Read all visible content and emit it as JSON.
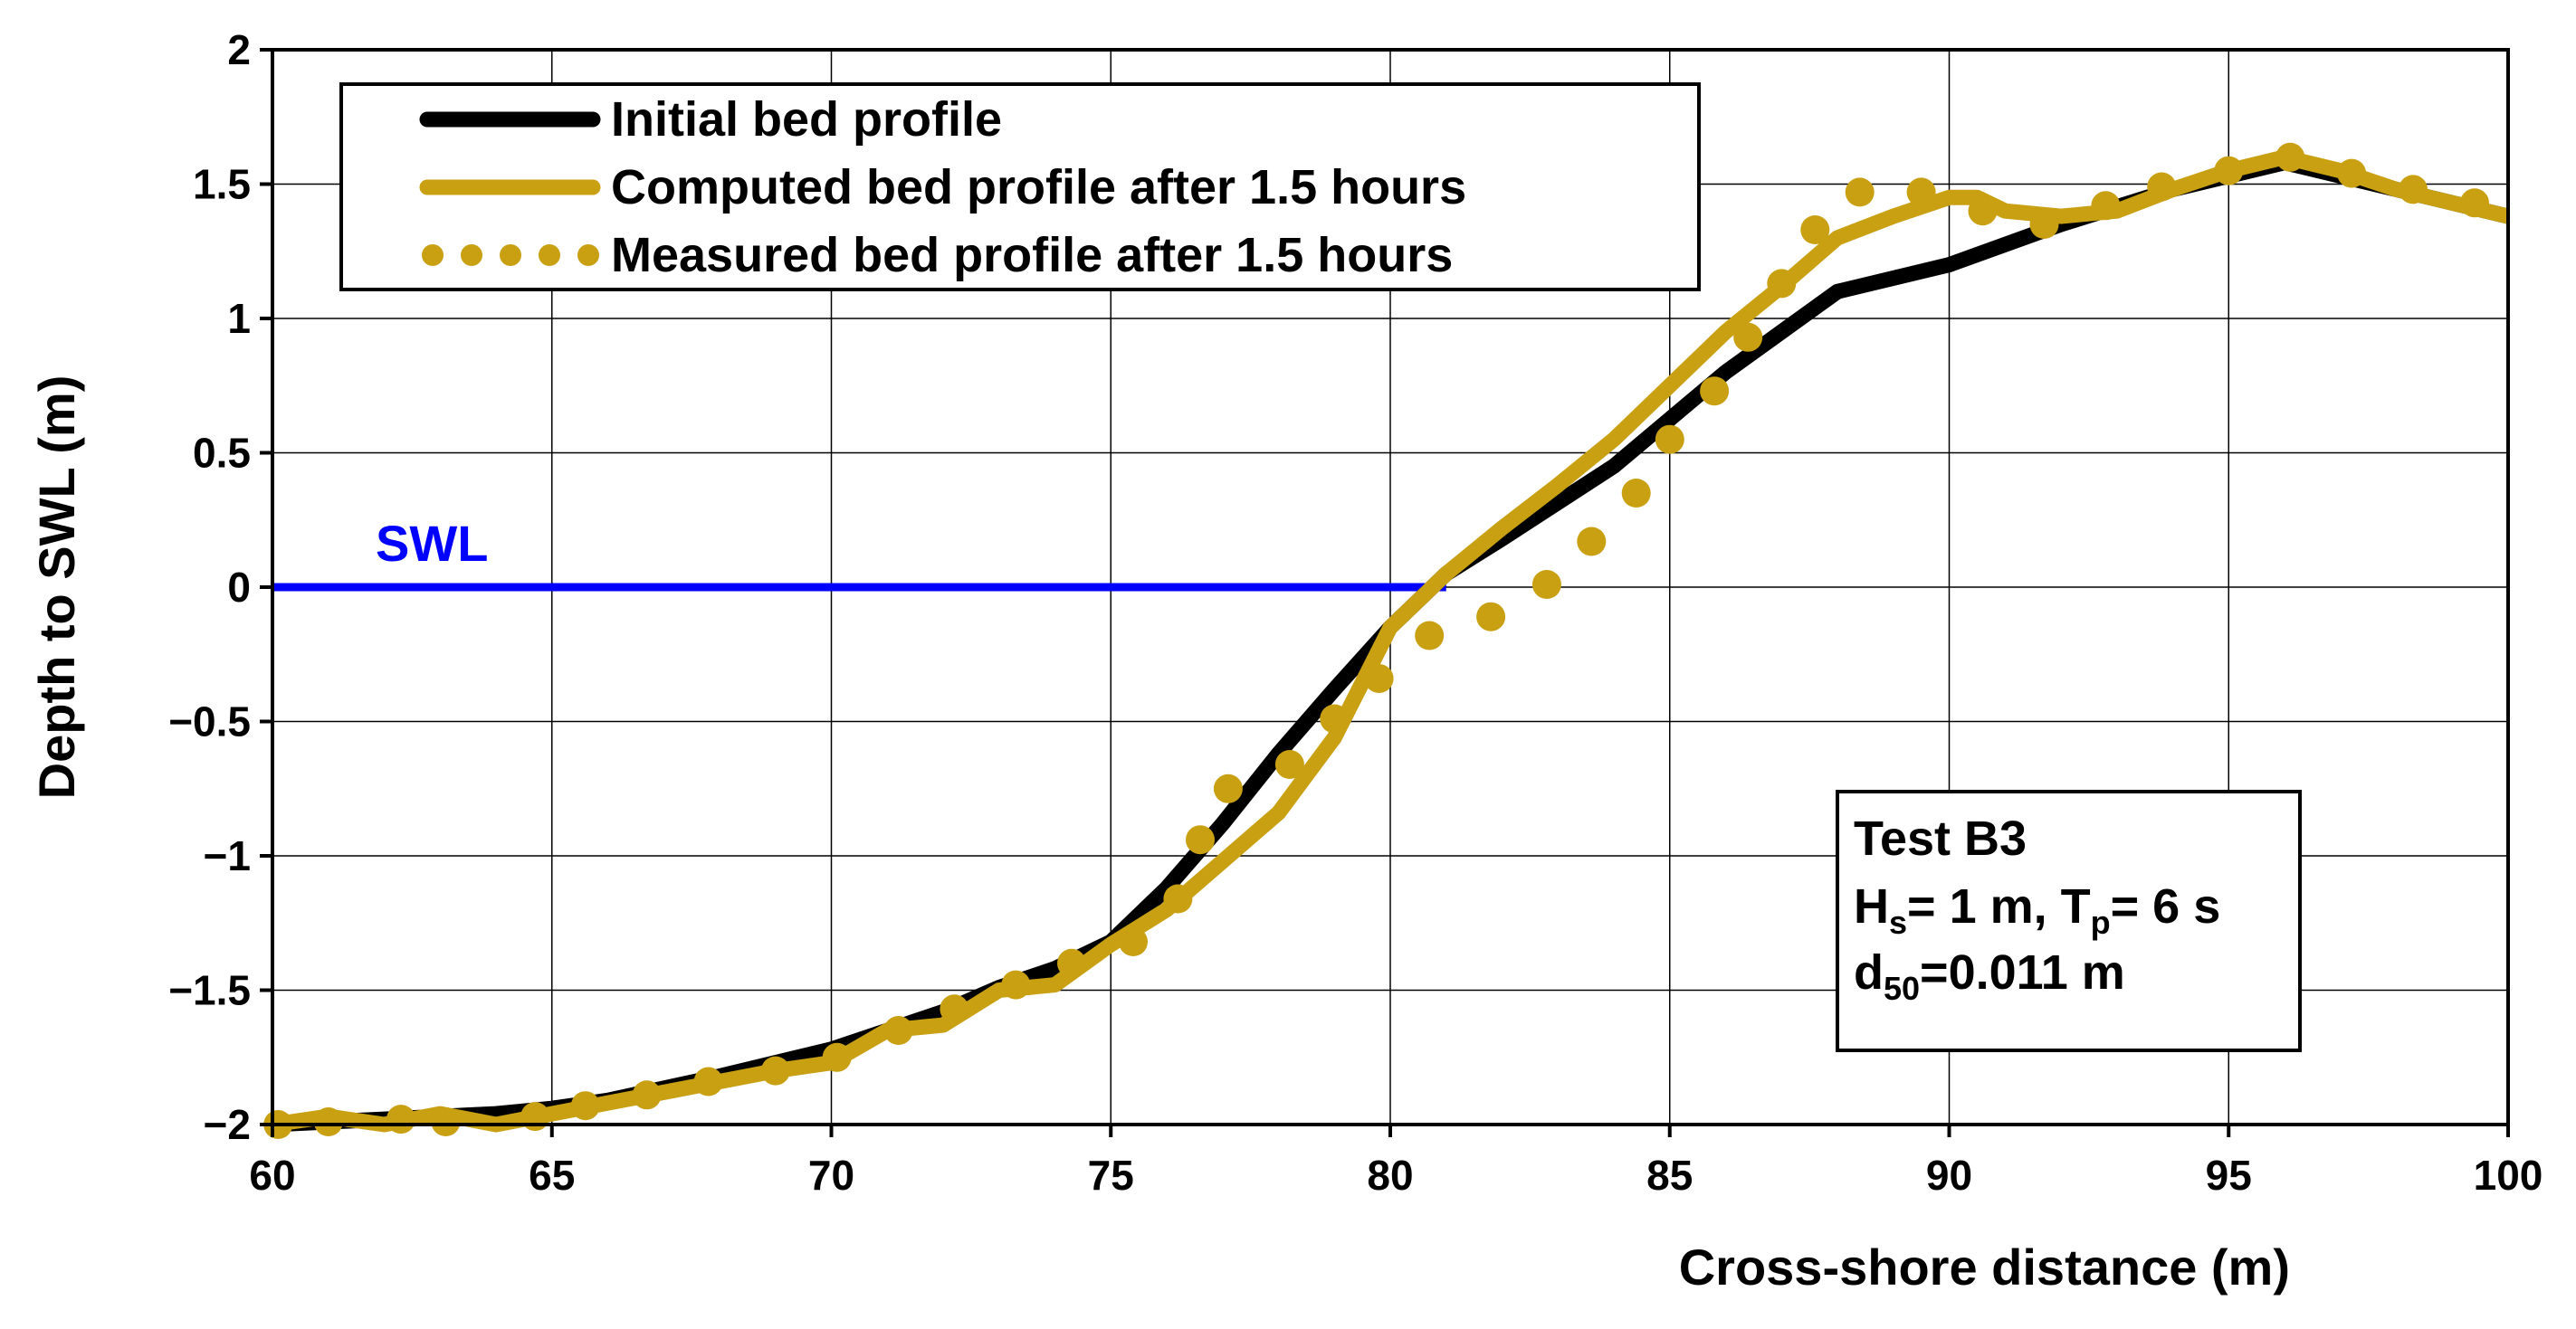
{
  "chart_data": {
    "type": "line",
    "title": "",
    "xlabel": "Cross-shore distance (m)",
    "ylabel": "Depth to SWL (m)",
    "xlim": [
      60,
      100
    ],
    "ylim": [
      -2,
      2
    ],
    "x_ticks": [
      60,
      65,
      70,
      75,
      80,
      85,
      90,
      95,
      100
    ],
    "y_ticks": [
      -2,
      -1.5,
      -1,
      -0.5,
      0,
      0.5,
      1,
      1.5,
      2
    ],
    "x_tick_labels": [
      "60",
      "65",
      "70",
      "75",
      "80",
      "85",
      "90",
      "95",
      "100"
    ],
    "y_tick_labels": [
      "−2",
      "−1.5",
      "−1",
      "−0.5",
      "0",
      "0.5",
      "1",
      "1.5",
      "2"
    ],
    "grid": true,
    "legend_position": "top-left",
    "reference_line": {
      "label": "SWL",
      "y": 0,
      "x_range": [
        60,
        81
      ],
      "color": "#0000ff"
    },
    "info_box": {
      "position": "bottom-right",
      "line1": "Test B3",
      "line2": {
        "a": "H",
        "a_sub": "s",
        "b": "= 1 m, T",
        "b_sub": "p",
        "c": "= 6 s"
      },
      "line3": {
        "a": "d",
        "a_sub": "50",
        "b": "=0.011 m"
      }
    },
    "series": [
      {
        "name": "Initial bed profile",
        "style": "line",
        "color": "#000000",
        "x": [
          60,
          62,
          64,
          65,
          66,
          68,
          70,
          72,
          73,
          74,
          75,
          76,
          77,
          78,
          79,
          80,
          81,
          82,
          84,
          86,
          88,
          90,
          92,
          94,
          96,
          98,
          100
        ],
        "y": [
          -2.0,
          -1.98,
          -1.96,
          -1.94,
          -1.91,
          -1.82,
          -1.72,
          -1.58,
          -1.49,
          -1.42,
          -1.32,
          -1.12,
          -0.88,
          -0.62,
          -0.38,
          -0.15,
          0.05,
          0.18,
          0.45,
          0.8,
          1.1,
          1.2,
          1.35,
          1.48,
          1.58,
          1.48,
          1.38
        ]
      },
      {
        "name": "Computed bed profile after 1.5 hours",
        "style": "line",
        "color": "#c8a012",
        "x": [
          60,
          61,
          62,
          63,
          64,
          65,
          66,
          67,
          68,
          69,
          70,
          71,
          72,
          73,
          74,
          75,
          76,
          77,
          78,
          79,
          80,
          81,
          82,
          83,
          84,
          85,
          86,
          87,
          88,
          89,
          90,
          90.5,
          91,
          92,
          93,
          94,
          95,
          96,
          97,
          98,
          99,
          100
        ],
        "y": [
          -2.0,
          -1.97,
          -2.0,
          -1.96,
          -2.0,
          -1.96,
          -1.92,
          -1.88,
          -1.84,
          -1.8,
          -1.77,
          -1.65,
          -1.63,
          -1.5,
          -1.48,
          -1.33,
          -1.2,
          -1.02,
          -0.84,
          -0.56,
          -0.15,
          0.05,
          0.22,
          0.38,
          0.55,
          0.75,
          0.95,
          1.12,
          1.3,
          1.38,
          1.45,
          1.45,
          1.4,
          1.38,
          1.4,
          1.48,
          1.55,
          1.6,
          1.55,
          1.48,
          1.43,
          1.38
        ]
      },
      {
        "name": "Measured bed profile after 1.5 hours",
        "style": "dots",
        "color": "#c8a012",
        "x": [
          60.1,
          61.0,
          62.3,
          63.1,
          64.7,
          65.6,
          66.7,
          67.8,
          69.0,
          70.1,
          71.2,
          72.2,
          73.3,
          74.3,
          75.4,
          76.2,
          76.6,
          77.1,
          78.2,
          79.0,
          79.8,
          80.7,
          81.8,
          82.8,
          83.6,
          84.4,
          85.0,
          85.8,
          86.4,
          87.0,
          87.6,
          88.4,
          89.5,
          90.6,
          91.7,
          92.8,
          93.8,
          95.0,
          96.1,
          97.2,
          98.3,
          99.4
        ],
        "y": [
          -2.0,
          -1.99,
          -1.98,
          -1.99,
          -1.97,
          -1.93,
          -1.89,
          -1.84,
          -1.8,
          -1.75,
          -1.65,
          -1.57,
          -1.48,
          -1.4,
          -1.32,
          -1.16,
          -0.94,
          -0.75,
          -0.66,
          -0.49,
          -0.34,
          -0.18,
          -0.11,
          0.01,
          0.17,
          0.35,
          0.55,
          0.73,
          0.93,
          1.13,
          1.33,
          1.47,
          1.47,
          1.4,
          1.35,
          1.42,
          1.49,
          1.55,
          1.6,
          1.54,
          1.48,
          1.43
        ]
      }
    ]
  }
}
